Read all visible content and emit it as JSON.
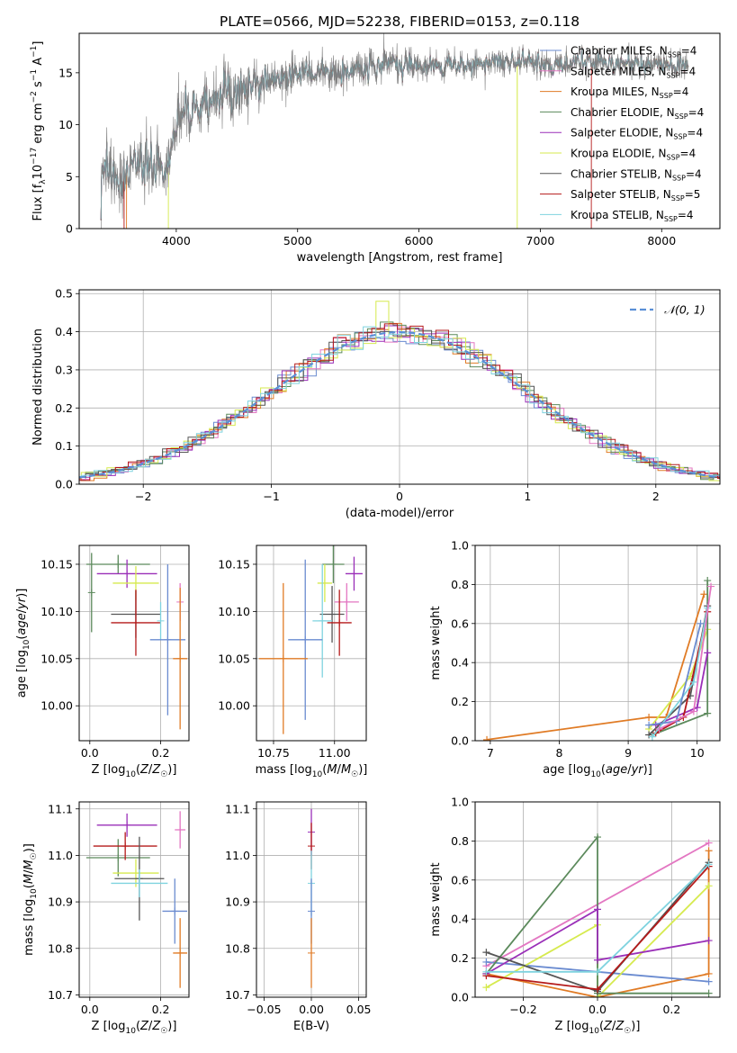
{
  "figure": {
    "title": "PLATE=0566, MJD=52238, FIBERID=0153, z=0.118"
  },
  "colors": {
    "chabrier_miles": "#6a8bd0",
    "salpeter_miles": "#e377c2",
    "kroupa_miles": "#e07b25",
    "chabrier_elodie": "#5c8a5c",
    "salpeter_elodie": "#9a2fb8",
    "kroupa_elodie": "#d6ea4e",
    "chabrier_stelib": "#555555",
    "salpeter_stelib": "#b51a1a",
    "kroupa_stelib": "#7fd3df",
    "normal_curve": "#5a8fd6"
  },
  "chart_data": [
    {
      "id": "spectrum",
      "type": "line",
      "title": "PLATE=0566, MJD=52238, FIBERID=0153, z=0.118",
      "xlabel": "wavelength [Angstrom, rest frame]",
      "ylabel": "Flux [f_λ 10^-17 erg cm^-2 s^-1 A^-1]",
      "xlim": [
        3200,
        8480
      ],
      "ylim": [
        0,
        18.8
      ],
      "xticks": [
        4000,
        5000,
        6000,
        7000,
        8000
      ],
      "yticks": [
        0,
        5,
        10,
        15
      ],
      "grid": false,
      "legend_position": "top-right",
      "series": [
        {
          "name": "Chabrier MILES, N_SSP=4",
          "key": "chabrier_miles"
        },
        {
          "name": "Salpeter MILES, N_SSP=4",
          "key": "salpeter_miles"
        },
        {
          "name": "Kroupa MILES, N_SSP=4",
          "key": "kroupa_miles"
        },
        {
          "name": "Chabrier ELODIE, N_SSP=4",
          "key": "chabrier_elodie"
        },
        {
          "name": "Salpeter ELODIE, N_SSP=4",
          "key": "salpeter_elodie"
        },
        {
          "name": "Kroupa ELODIE, N_SSP=4",
          "key": "kroupa_elodie"
        },
        {
          "name": "Chabrier STELIB, N_SSP=4",
          "key": "chabrier_stelib"
        },
        {
          "name": "Salpeter STELIB, N_SSP=5",
          "key": "salpeter_stelib"
        },
        {
          "name": "Kroupa STELIB, N_SSP=4",
          "key": "kroupa_stelib"
        }
      ],
      "continuum": [
        [
          3380,
          5.6
        ],
        [
          3500,
          5.0
        ],
        [
          3600,
          5.8
        ],
        [
          3700,
          6.6
        ],
        [
          3850,
          6.5
        ],
        [
          3930,
          6.0
        ],
        [
          4000,
          10.0
        ],
        [
          4100,
          11.0
        ],
        [
          4250,
          12.0
        ],
        [
          4400,
          12.6
        ],
        [
          4600,
          13.6
        ],
        [
          4800,
          14.3
        ],
        [
          5000,
          14.7
        ],
        [
          5200,
          15.0
        ],
        [
          5500,
          15.4
        ],
        [
          5800,
          15.6
        ],
        [
          6100,
          15.7
        ],
        [
          6400,
          15.8
        ],
        [
          6700,
          16.1
        ],
        [
          7000,
          16.0
        ],
        [
          7300,
          15.9
        ],
        [
          7600,
          15.9
        ],
        [
          7900,
          15.8
        ],
        [
          8200,
          15.7
        ]
      ]
    },
    {
      "id": "residuals",
      "type": "line",
      "xlabel": "(data-model)/error",
      "ylabel": "Normed distribution",
      "xlim": [
        -2.5,
        2.5
      ],
      "ylim": [
        0,
        0.51
      ],
      "xticks": [
        -2,
        -1,
        0,
        1,
        2
      ],
      "yticks": [
        0.0,
        0.1,
        0.2,
        0.3,
        0.4,
        0.5
      ],
      "grid": true,
      "legend_position": "top-right",
      "reference_curve": {
        "name": "N(0,1)",
        "mean": 0,
        "sigma": 1
      }
    },
    {
      "id": "age_vs_Z",
      "type": "scatter",
      "xlabel": "Z [log10(Z/Z☉)]",
      "ylabel": "age [log10(age/yr)]",
      "xlim": [
        -0.03,
        0.28
      ],
      "ylim": [
        9.963,
        10.17
      ],
      "xticks": [
        0.0,
        0.2
      ],
      "yticks": [
        10.0,
        10.05,
        10.1,
        10.15
      ],
      "grid": true,
      "points": [
        {
          "key": "chabrier_elodie",
          "x": 0.08,
          "xerr": 0.09,
          "y": 10.15,
          "yerr": 0.01
        },
        {
          "key": "chabrier_elodie",
          "x": 0.005,
          "y": 10.12,
          "yerr": 0.042
        },
        {
          "key": "salpeter_elodie",
          "x": 0.105,
          "xerr": 0.085,
          "y": 10.14,
          "yerr": 0.015
        },
        {
          "key": "kroupa_elodie",
          "x": 0.13,
          "xerr": 0.065,
          "y": 10.13,
          "yerr": 0.018
        },
        {
          "key": "chabrier_stelib",
          "x": 0.13,
          "xerr": 0.07,
          "y": 10.097,
          "yerr": 0.025
        },
        {
          "key": "salpeter_stelib",
          "x": 0.13,
          "xerr": 0.07,
          "y": 10.088,
          "yerr": 0.035
        },
        {
          "key": "kroupa_stelib",
          "x": 0.2,
          "y": 10.09,
          "yerr": 0.02
        },
        {
          "key": "salpeter_miles",
          "x": 0.255,
          "y": 10.11,
          "yerr": 0.02
        },
        {
          "key": "chabrier_miles",
          "x": 0.22,
          "xerr": 0.05,
          "y": 10.07,
          "yerr": 0.08
        },
        {
          "key": "kroupa_miles",
          "x": 0.255,
          "xerr": 0.02,
          "y": 10.05,
          "yerr": 0.075
        }
      ]
    },
    {
      "id": "age_vs_mass",
      "type": "scatter",
      "xlabel": "mass [log10(M/M☉)]",
      "ylabel": "",
      "xlim": [
        10.68,
        11.13
      ],
      "ylim": [
        9.963,
        10.17
      ],
      "xticks": [
        10.75,
        11.0
      ],
      "yticks": [
        10.0,
        10.05,
        10.1,
        10.15
      ],
      "grid": true,
      "points": [
        {
          "key": "chabrier_elodie",
          "x": 10.995,
          "xerr": 0.045,
          "y": 10.15,
          "yerr": 0.02
        },
        {
          "key": "salpeter_elodie",
          "x": 11.08,
          "xerr": 0.035,
          "y": 10.14,
          "yerr": 0.018
        },
        {
          "key": "kroupa_elodie",
          "x": 10.96,
          "xerr": 0.03,
          "y": 10.13,
          "yerr": 0.02
        },
        {
          "key": "salpeter_miles",
          "x": 11.05,
          "xerr": 0.05,
          "y": 10.11,
          "yerr": 0.02
        },
        {
          "key": "chabrier_stelib",
          "x": 10.99,
          "xerr": 0.05,
          "y": 10.097,
          "yerr": 0.03
        },
        {
          "key": "kroupa_stelib",
          "x": 10.95,
          "xerr": 0.04,
          "y": 10.09,
          "yerr": 0.06
        },
        {
          "key": "salpeter_stelib",
          "x": 11.02,
          "xerr": 0.05,
          "y": 10.088,
          "yerr": 0.035
        },
        {
          "key": "chabrier_miles",
          "x": 10.88,
          "xerr": 0.07,
          "y": 10.07,
          "yerr": 0.085
        },
        {
          "key": "kroupa_miles",
          "x": 10.79,
          "xerr": 0.1,
          "y": 10.05,
          "yerr": 0.08
        }
      ]
    },
    {
      "id": "mass_weight_vs_age",
      "type": "line",
      "xlabel": "age [log10(age/yr)]",
      "ylabel": "mass weight",
      "xlim": [
        6.78,
        10.33
      ],
      "ylim": [
        0,
        1.0
      ],
      "xticks": [
        7,
        8,
        9,
        10
      ],
      "yticks": [
        0.0,
        0.2,
        0.4,
        0.6,
        0.8,
        1.0
      ],
      "grid": true,
      "series": [
        {
          "key": "kroupa_miles",
          "x": [
            6.95,
            9.3,
            9.55,
            10.1
          ],
          "y": [
            0.005,
            0.12,
            0.12,
            0.75
          ]
        },
        {
          "key": "kroupa_elodie",
          "x": [
            9.3,
            9.9,
            10.15
          ],
          "y": [
            0.06,
            0.33,
            0.57
          ]
        },
        {
          "key": "chabrier_elodie",
          "x": [
            9.35,
            10.15,
            10.15
          ],
          "y": [
            0.03,
            0.14,
            0.82
          ]
        },
        {
          "key": "salpeter_elodie",
          "x": [
            9.4,
            10.0,
            10.15
          ],
          "y": [
            0.08,
            0.17,
            0.45
          ]
        },
        {
          "key": "chabrier_stelib",
          "x": [
            9.3,
            9.9,
            10.15
          ],
          "y": [
            0.03,
            0.23,
            0.69
          ]
        },
        {
          "key": "salpeter_stelib",
          "x": [
            9.4,
            9.8,
            10.15
          ],
          "y": [
            0.04,
            0.12,
            0.66
          ]
        },
        {
          "key": "kroupa_stelib",
          "x": [
            9.35,
            9.95,
            10.15
          ],
          "y": [
            0.02,
            0.3,
            0.68
          ]
        },
        {
          "key": "chabrier_miles",
          "x": [
            9.3,
            9.7,
            10.05
          ],
          "y": [
            0.08,
            0.1,
            0.6
          ]
        },
        {
          "key": "salpeter_miles",
          "x": [
            9.45,
            9.95,
            10.2
          ],
          "y": [
            0.06,
            0.15,
            0.79
          ]
        }
      ]
    },
    {
      "id": "mass_vs_Z",
      "type": "scatter",
      "xlabel": "Z [log10(Z/Z☉)]",
      "ylabel": "mass [log10(M/M☉)]",
      "xlim": [
        -0.03,
        0.28
      ],
      "ylim": [
        10.695,
        11.115
      ],
      "xticks": [
        0.0,
        0.2
      ],
      "yticks": [
        10.7,
        10.8,
        10.9,
        11.0,
        11.1
      ],
      "grid": true,
      "points": [
        {
          "key": "chabrier_elodie",
          "x": 0.08,
          "xerr": 0.09,
          "y": 10.995,
          "yerr": 0.04
        },
        {
          "key": "salpeter_elodie",
          "x": 0.105,
          "xerr": 0.085,
          "y": 11.065,
          "yerr": 0.025
        },
        {
          "key": "salpeter_stelib",
          "x": 0.1,
          "xerr": 0.09,
          "y": 11.02,
          "yerr": 0.03
        },
        {
          "key": "kroupa_elodie",
          "x": 0.13,
          "xerr": 0.065,
          "y": 10.962,
          "yerr": 0.03
        },
        {
          "key": "chabrier_stelib",
          "x": 0.14,
          "xerr": 0.07,
          "y": 10.95,
          "yerr": 0.09
        },
        {
          "key": "kroupa_stelib",
          "x": 0.14,
          "xerr": 0.08,
          "y": 10.94,
          "yerr": 0.03
        },
        {
          "key": "salpeter_miles",
          "x": 0.255,
          "xerr": 0.015,
          "y": 11.055,
          "yerr": 0.04
        },
        {
          "key": "chabrier_miles",
          "x": 0.24,
          "xerr": 0.035,
          "y": 10.88,
          "yerr": 0.07
        },
        {
          "key": "kroupa_miles",
          "x": 0.255,
          "xerr": 0.02,
          "y": 10.79,
          "yerr": 0.075
        }
      ]
    },
    {
      "id": "mass_vs_ebv",
      "type": "scatter",
      "xlabel": "E(B-V)",
      "ylabel": "",
      "xlim": [
        -0.058,
        0.058
      ],
      "ylim": [
        10.695,
        11.115
      ],
      "xticks": [
        -0.05,
        0.0,
        0.05
      ],
      "yticks": [
        10.7,
        10.8,
        10.9,
        11.0,
        11.1
      ],
      "grid": true,
      "points": [
        {
          "key": "salpeter_elodie",
          "x": 0.0,
          "y": 11.05,
          "yerr": 0.05
        },
        {
          "key": "salpeter_stelib",
          "x": 0.0,
          "y": 11.02,
          "yerr": 0.05
        },
        {
          "key": "kroupa_stelib",
          "x": 0.0,
          "y": 10.94,
          "yerr": 0.07
        },
        {
          "key": "chabrier_miles",
          "x": 0.0,
          "y": 10.88,
          "yerr": 0.07
        },
        {
          "key": "kroupa_miles",
          "x": 0.0,
          "y": 10.79,
          "yerr": 0.075
        }
      ]
    },
    {
      "id": "mass_weight_vs_Z",
      "type": "line",
      "xlabel": "Z [log10(Z/Z☉)]",
      "ylabel": "mass weight",
      "xlim": [
        -0.33,
        0.33
      ],
      "ylim": [
        0,
        1.0
      ],
      "xticks": [
        -0.2,
        0.0,
        0.2
      ],
      "yticks": [
        0.0,
        0.2,
        0.4,
        0.6,
        0.8,
        1.0
      ],
      "grid": true,
      "series": [
        {
          "key": "salpeter_miles",
          "x": [
            -0.3,
            0.3
          ],
          "y": [
            0.16,
            0.79
          ]
        },
        {
          "key": "kroupa_miles",
          "x": [
            -0.3,
            0.0,
            0.3,
            0.3
          ],
          "y": [
            0.12,
            0.0,
            0.12,
            0.75
          ]
        },
        {
          "key": "chabrier_miles",
          "x": [
            -0.3,
            0.0,
            0.3
          ],
          "y": [
            0.18,
            0.13,
            0.08
          ]
        },
        {
          "key": "kroupa_elodie",
          "x": [
            -0.3,
            0.0,
            0.0,
            0.3
          ],
          "y": [
            0.05,
            0.37,
            0.0,
            0.57
          ]
        },
        {
          "key": "chabrier_elodie",
          "x": [
            -0.3,
            0.0,
            0.0,
            0.3
          ],
          "y": [
            0.12,
            0.82,
            0.02,
            0.02
          ]
        },
        {
          "key": "salpeter_elodie",
          "x": [
            -0.3,
            0.0,
            0.0,
            0.3
          ],
          "y": [
            0.12,
            0.45,
            0.19,
            0.29
          ]
        },
        {
          "key": "chabrier_stelib",
          "x": [
            -0.3,
            0.0,
            0.3
          ],
          "y": [
            0.23,
            0.03,
            0.69
          ]
        },
        {
          "key": "salpeter_stelib",
          "x": [
            -0.3,
            0.0,
            0.3
          ],
          "y": [
            0.11,
            0.04,
            0.67
          ]
        },
        {
          "key": "kroupa_stelib",
          "x": [
            -0.3,
            0.0,
            0.3
          ],
          "y": [
            0.13,
            0.13,
            0.68
          ]
        }
      ]
    }
  ]
}
